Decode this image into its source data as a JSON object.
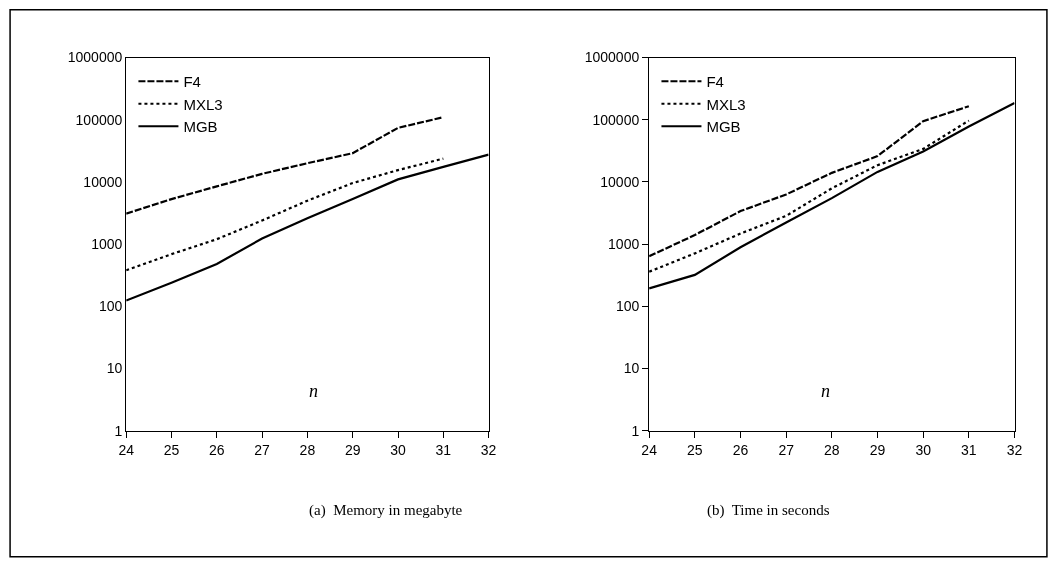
{
  "chart_data": [
    {
      "type": "line",
      "xlabel": "n",
      "x": [
        24,
        25,
        26,
        27,
        28,
        29,
        30,
        31,
        32
      ],
      "xlim": [
        24,
        32
      ],
      "xticks": [
        24,
        25,
        26,
        27,
        28,
        29,
        30,
        31,
        32
      ],
      "log": "y",
      "ylim": [
        1,
        1000000
      ],
      "yticks": [
        1,
        10,
        100,
        1000,
        10000,
        100000,
        1000000
      ],
      "legend": "top left",
      "marker": "none",
      "series": [
        {
          "name": "F4",
          "color": "#000000",
          "line_style": "dashed",
          "values": [
            3100,
            5300,
            8500,
            13500,
            20000,
            29000,
            74000,
            110000,
            null
          ]
        },
        {
          "name": "MXL3",
          "color": "#000000",
          "line_style": "dotted",
          "values": [
            380,
            690,
            1200,
            2400,
            5000,
            9600,
            15500,
            23700,
            null
          ]
        },
        {
          "name": "MGB",
          "color": "#000000",
          "line_style": "solid",
          "values": [
            124,
            240,
            480,
            1230,
            2600,
            5300,
            11000,
            17500,
            27500
          ]
        }
      ],
      "annotations": [
        "(a)  Memory in megabyte"
      ]
    },
    {
      "type": "line",
      "xlabel": "n",
      "x": [
        24,
        25,
        26,
        27,
        28,
        29,
        30,
        31,
        32
      ],
      "xlim": [
        24,
        32
      ],
      "xticks": [
        24,
        25,
        26,
        27,
        28,
        29,
        30,
        31,
        32
      ],
      "log": "y",
      "ylim": [
        1,
        1000000
      ],
      "yticks": [
        1,
        10,
        100,
        1000,
        10000,
        100000,
        1000000
      ],
      "legend": "top left",
      "marker": "none",
      "series": [
        {
          "name": "F4",
          "color": "#000000",
          "line_style": "dashed",
          "values": [
            640,
            1400,
            3400,
            6300,
            14000,
            26000,
            95000,
            165000,
            null
          ]
        },
        {
          "name": "MXL3",
          "color": "#000000",
          "line_style": "dotted",
          "values": [
            360,
            710,
            1480,
            2850,
            7900,
            18600,
            34000,
            97000,
            null
          ]
        },
        {
          "name": "MGB",
          "color": "#000000",
          "line_style": "solid",
          "values": [
            194,
            320,
            890,
            2230,
            5500,
            14500,
            31000,
            78000,
            186000
          ]
        }
      ],
      "annotations": [
        "(b)  Time in seconds"
      ]
    }
  ]
}
